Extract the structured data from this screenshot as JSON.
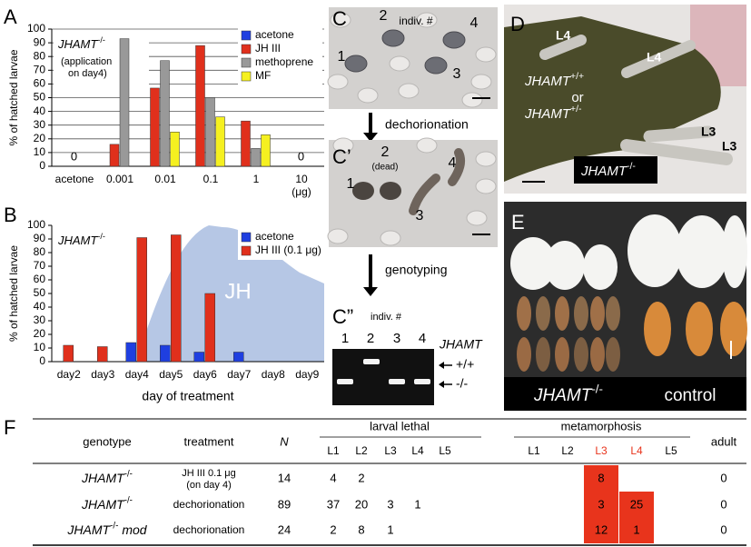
{
  "chart_data": [
    {
      "type": "bar",
      "panel_label": "A",
      "ylabel": "% of hatched larvae",
      "genotype": {
        "gene": "JHAMT",
        "sup": "-/-"
      },
      "note": [
        "(application",
        "on day4)"
      ],
      "categories": [
        "acetone",
        "0.001",
        "0.01",
        "0.1",
        "1",
        "10"
      ],
      "x_unit": "(μg)",
      "series": [
        {
          "name": "acetone",
          "color": "#1f3fe0",
          "values": [
            0,
            null,
            null,
            null,
            null,
            null
          ],
          "value_labels": [
            "0",
            null,
            null,
            null,
            null,
            null
          ]
        },
        {
          "name": "JH III",
          "color": "#e0301c",
          "values": [
            null,
            16,
            57,
            88,
            33,
            0
          ],
          "value_labels": [
            null,
            null,
            null,
            null,
            null,
            "0"
          ]
        },
        {
          "name": "methoprene",
          "color": "#999999",
          "values": [
            null,
            93,
            77,
            50,
            13,
            null
          ]
        },
        {
          "name": "MF",
          "color": "#f5f020",
          "values": [
            null,
            null,
            25,
            36,
            23,
            null
          ]
        }
      ],
      "ylim": [
        0,
        100
      ],
      "yticks": [
        0,
        10,
        20,
        30,
        40,
        50,
        60,
        70,
        80,
        90,
        100
      ],
      "grid": true,
      "legend": "upper right"
    },
    {
      "type": "bar",
      "panel_label": "B",
      "ylabel": "% of hatched larvae",
      "xlabel": "day of treatment",
      "genotype": {
        "gene": "JHAMT",
        "sup": "-/-"
      },
      "area_label": "JH",
      "categories": [
        "day2",
        "day3",
        "day4",
        "day5",
        "day6",
        "day7",
        "day8",
        "day9"
      ],
      "series": [
        {
          "name": "acetone",
          "color": "#1f3fe0",
          "values": [
            null,
            null,
            14,
            12,
            7,
            7,
            null,
            null
          ]
        },
        {
          "name": "JH III (0.1 μg)",
          "color": "#e0301c",
          "values": [
            12,
            11,
            91,
            93,
            50,
            null,
            null,
            null
          ]
        }
      ],
      "ylim": [
        0,
        100
      ],
      "yticks": [
        0,
        10,
        20,
        30,
        40,
        50,
        60,
        70,
        80,
        90,
        100
      ],
      "grid": false,
      "legend": "upper right"
    }
  ],
  "photos": {
    "C": {
      "label": "C",
      "header": "indiv. #",
      "numbers": [
        "1",
        "2",
        "3",
        "4"
      ]
    },
    "C1": {
      "label": "C’",
      "numbers": [
        "1",
        "2",
        "3",
        "4"
      ],
      "note": "(dead)"
    },
    "C2": {
      "label": "C”",
      "header": "indiv. #",
      "lanes": [
        "1",
        "2",
        "3",
        "4"
      ],
      "gene": "JHAMT",
      "bands": [
        "+/+",
        "-/-"
      ]
    },
    "steps": [
      "dechorionation",
      "genotyping"
    ],
    "D": {
      "label": "D",
      "stages_top": [
        "L4",
        "L4"
      ],
      "wild": {
        "gene": "JHAMT",
        "sup": "+/+"
      },
      "or": "or",
      "het": {
        "gene": "JHAMT",
        "sup": "+/-"
      },
      "stages_bottom": [
        "L3",
        "L3"
      ],
      "mutant": {
        "gene": "JHAMT",
        "sup": "-/-"
      }
    },
    "E": {
      "label": "E",
      "mutant": {
        "gene": "JHAMT",
        "sup": "-/-"
      },
      "control": "control"
    }
  },
  "table": {
    "label": "F",
    "headers": {
      "genotype": "genotype",
      "treatment": "treatment",
      "n": "N",
      "lethal": "larval lethal",
      "meta": "metamorphosis",
      "adult": "adult",
      "stages": [
        "L1",
        "L2",
        "L3",
        "L4",
        "L5"
      ]
    },
    "highlight_color": "#e8341c",
    "rows": [
      {
        "genotype": {
          "gene": "JHAMT",
          "sup": "-/-"
        },
        "treatment": [
          "JH III 0.1 μg",
          "(on day 4)"
        ],
        "n": 14,
        "lethal": [
          4,
          2,
          null,
          null,
          null
        ],
        "meta": [
          null,
          null,
          8,
          null,
          null
        ],
        "adult": 0
      },
      {
        "genotype": {
          "gene": "JHAMT",
          "sup": "-/-"
        },
        "treatment": [
          "dechorionation"
        ],
        "n": 89,
        "lethal": [
          37,
          20,
          3,
          1,
          null
        ],
        "meta": [
          null,
          null,
          3,
          25,
          null
        ],
        "adult": 0
      },
      {
        "genotype": {
          "gene": "JHAMT",
          "sup": "-/-",
          "suffix": "mod"
        },
        "treatment": [
          "dechorionation"
        ],
        "n": 24,
        "lethal": [
          2,
          8,
          1,
          null,
          null
        ],
        "meta": [
          null,
          null,
          12,
          1,
          null
        ],
        "adult": 0
      }
    ]
  }
}
